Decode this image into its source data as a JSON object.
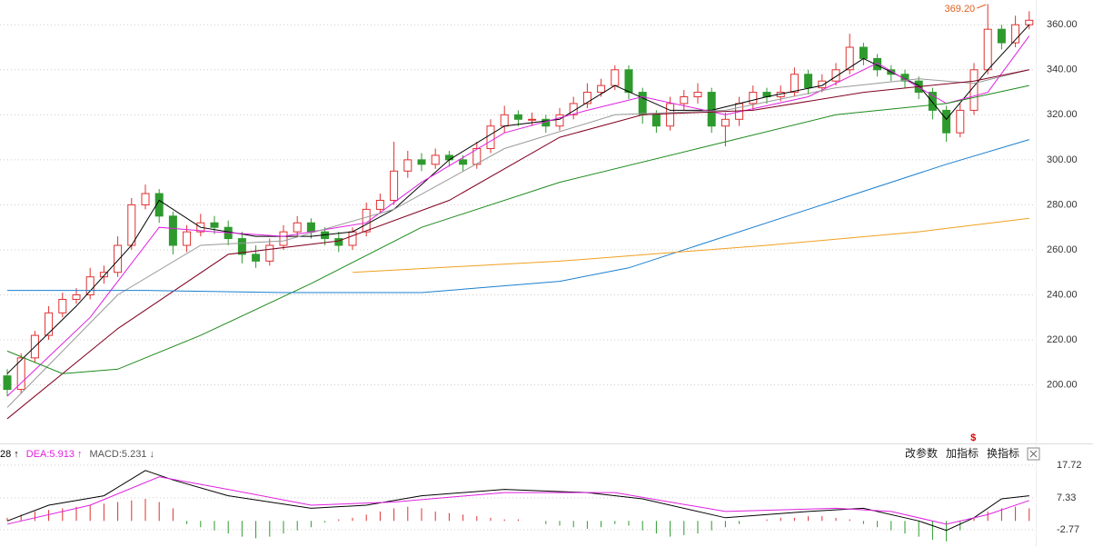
{
  "chart_data": {
    "type": "candlestick",
    "ylim": [
      174,
      371
    ],
    "yticks": [
      {
        "value": 200,
        "label": "200.00"
      },
      {
        "value": 220,
        "label": "220.00"
      },
      {
        "value": 240,
        "label": "240.00"
      },
      {
        "value": 260,
        "label": "260.00"
      },
      {
        "value": 280,
        "label": "280.00"
      },
      {
        "value": 300,
        "label": "300.00"
      },
      {
        "value": 320,
        "label": "320.00"
      },
      {
        "value": 340,
        "label": "340.00"
      },
      {
        "value": 360,
        "label": "360.00"
      }
    ],
    "grid": true,
    "up_color": "#e03030",
    "down_color": "#2e9a2e",
    "open": [
      204,
      198,
      212,
      222,
      232,
      238,
      240,
      248,
      250,
      262,
      280,
      285,
      275,
      262,
      268,
      272,
      270,
      265,
      258,
      255,
      262,
      268,
      272,
      268,
      265,
      262,
      268,
      278,
      282,
      295,
      300,
      298,
      302,
      300,
      298,
      305,
      315,
      320,
      318,
      318,
      315,
      320,
      325,
      330,
      333,
      340,
      330,
      320,
      315,
      325,
      328,
      330,
      315,
      318,
      325,
      330,
      328,
      330,
      338,
      332,
      335,
      340,
      350,
      345,
      340,
      338,
      335,
      330,
      322,
      312,
      322,
      340,
      358,
      352,
      360
    ],
    "high": [
      207,
      214,
      224,
      235,
      241,
      243,
      252,
      253,
      266,
      283,
      289,
      287,
      277,
      271,
      276,
      275,
      273,
      268,
      262,
      265,
      271,
      275,
      274,
      270,
      268,
      270,
      281,
      285,
      308,
      304,
      303,
      305,
      304,
      302,
      308,
      318,
      324,
      322,
      321,
      320,
      323,
      328,
      334,
      336,
      342,
      342,
      332,
      322,
      328,
      331,
      334,
      332,
      321,
      328,
      333,
      332,
      333,
      341,
      340,
      338,
      343,
      356,
      352,
      347,
      342,
      340,
      337,
      332,
      324,
      325,
      343,
      369.2,
      360,
      364,
      366
    ],
    "low": [
      195,
      196,
      210,
      220,
      230,
      236,
      238,
      245,
      248,
      260,
      278,
      272,
      258,
      259,
      266,
      267,
      262,
      254,
      252,
      253,
      260,
      266,
      265,
      262,
      259,
      260,
      266,
      276,
      280,
      292,
      295,
      296,
      297,
      295,
      296,
      303,
      312,
      315,
      315,
      312,
      313,
      318,
      323,
      328,
      331,
      327,
      316,
      312,
      313,
      322,
      325,
      312,
      306,
      315,
      322,
      325,
      326,
      328,
      329,
      330,
      333,
      338,
      342,
      337,
      335,
      332,
      327,
      318,
      308,
      310,
      320,
      338,
      349,
      350,
      358
    ],
    "close": [
      198,
      212,
      222,
      232,
      238,
      240,
      248,
      250,
      262,
      280,
      285,
      275,
      262,
      268,
      272,
      270,
      265,
      258,
      255,
      262,
      268,
      272,
      268,
      265,
      262,
      268,
      278,
      282,
      295,
      300,
      298,
      302,
      300,
      298,
      305,
      315,
      320,
      318,
      318,
      315,
      320,
      325,
      330,
      333,
      340,
      330,
      320,
      315,
      325,
      328,
      330,
      315,
      318,
      325,
      330,
      328,
      330,
      338,
      332,
      335,
      340,
      350,
      345,
      340,
      338,
      335,
      330,
      322,
      312,
      322,
      340,
      358,
      352,
      360,
      362
    ],
    "lines": [
      {
        "color": "#000000",
        "x": [
          0,
          5,
          9,
          11,
          14,
          18,
          22,
          25,
          28,
          32,
          36,
          40,
          44,
          48,
          51,
          55,
          59,
          62,
          66,
          68,
          71,
          74
        ],
        "values": [
          205,
          235,
          262,
          282,
          270,
          266,
          266,
          268,
          278,
          300,
          315,
          318,
          333,
          322,
          322,
          328,
          333,
          345,
          333,
          318,
          340,
          360
        ]
      },
      {
        "color": "#e020e0",
        "x": [
          0,
          6,
          11,
          15,
          20,
          26,
          30,
          36,
          42,
          46,
          52,
          58,
          63,
          68,
          71,
          74
        ],
        "values": [
          195,
          230,
          270,
          268,
          266,
          272,
          290,
          312,
          322,
          328,
          320,
          328,
          343,
          325,
          330,
          355
        ]
      },
      {
        "color": "#999999",
        "x": [
          0,
          8,
          14,
          20,
          28,
          36,
          44,
          52,
          60,
          66,
          70,
          74
        ],
        "values": [
          190,
          240,
          262,
          264,
          278,
          305,
          320,
          322,
          332,
          336,
          334,
          340
        ]
      },
      {
        "color": "#800020",
        "x": [
          0,
          8,
          16,
          24,
          32,
          40,
          46,
          54,
          62,
          70,
          74
        ],
        "values": [
          185,
          225,
          258,
          264,
          282,
          310,
          320,
          322,
          330,
          335,
          340
        ]
      },
      {
        "color": "#1e8a1e",
        "x": [
          0,
          4,
          8,
          14,
          22,
          30,
          40,
          50,
          60,
          68,
          74
        ],
        "values": [
          215,
          205,
          207,
          222,
          245,
          270,
          290,
          305,
          320,
          325,
          333
        ]
      },
      {
        "color": "#1a7fd0",
        "x": [
          0,
          10,
          20,
          30,
          40,
          45,
          50,
          60,
          68,
          74
        ],
        "values": [
          242,
          242,
          241,
          241,
          246,
          252,
          262,
          282,
          298,
          309
        ]
      },
      {
        "color": "#f0a020",
        "x": [
          25,
          40,
          55,
          66,
          74
        ],
        "values": [
          250,
          255,
          262,
          268,
          274
        ]
      }
    ],
    "annotation": "369.20",
    "marker": "$",
    "macd": {
      "ylim": [
        -7.7,
        19.7
      ],
      "yticks": [
        17.72,
        7.33,
        -2.77
      ],
      "legend": [
        {
          "text": "28",
          "arrow": "↑",
          "color": "#000000"
        },
        {
          "text": "DEA:5.913",
          "arrow": "↑",
          "color": "#e020e0"
        },
        {
          "text": "MACD:5.231",
          "arrow": "↓",
          "color": "#555555"
        }
      ],
      "dif": {
        "color": "#000000",
        "x": [
          0,
          3,
          7,
          10,
          12,
          16,
          22,
          26,
          30,
          36,
          42,
          46,
          52,
          58,
          62,
          66,
          68,
          70,
          72,
          74
        ],
        "values": [
          0,
          5,
          8,
          16,
          13,
          8,
          4,
          5,
          8,
          10,
          9,
          7,
          1,
          3,
          4,
          0,
          -3,
          1,
          7,
          8
        ]
      },
      "dea": {
        "color": "#e020e0",
        "x": [
          0,
          6,
          11,
          16,
          22,
          28,
          36,
          44,
          52,
          60,
          64,
          68,
          71,
          74
        ],
        "values": [
          -1,
          5,
          14,
          10,
          5,
          6,
          9,
          9,
          3,
          4,
          3,
          -1,
          2,
          6.5
        ]
      },
      "histogram": [
        1,
        2,
        3,
        3.5,
        4,
        4.5,
        5,
        5.5,
        6,
        6.5,
        7,
        6,
        4,
        -1,
        -2,
        -3,
        -4,
        -5,
        -5.5,
        -5,
        -4,
        -3,
        -2,
        -0.5,
        0.5,
        1,
        2,
        3,
        4,
        4.5,
        4,
        3,
        2.5,
        2,
        1.5,
        1,
        0.5,
        0.5,
        0,
        -1,
        -1.5,
        -2,
        -2.5,
        -2,
        -1,
        -1.5,
        -3,
        -4,
        -5,
        -4.5,
        -4,
        -3,
        -2,
        -1,
        0,
        0.5,
        1,
        1,
        1.5,
        1.5,
        1,
        0.5,
        -1,
        -2,
        -3,
        -4,
        -5,
        -6,
        -6.5,
        -3,
        1,
        3,
        4,
        4.5,
        4
      ]
    },
    "buttons": [
      "改参数",
      "加指标",
      "换指标"
    ]
  }
}
